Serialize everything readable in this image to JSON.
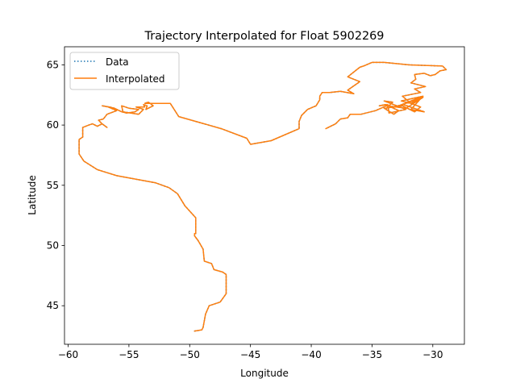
{
  "chart_data": {
    "type": "line",
    "title": "Trajectory Interpolated for Float 5902269",
    "xlabel": "Longitude",
    "ylabel": "Latitude",
    "xlim": [
      -60.3,
      -27.4
    ],
    "ylim": [
      41.8,
      66.5
    ],
    "xticks": [
      -60,
      -55,
      -50,
      -45,
      -40,
      -35,
      -30
    ],
    "yticks": [
      45,
      50,
      55,
      60,
      65
    ],
    "xtick_labels": [
      "−60",
      "−55",
      "−50",
      "−45",
      "−40",
      "−35",
      "−30"
    ],
    "ytick_labels": [
      "45",
      "50",
      "55",
      "60",
      "65"
    ],
    "grid": false,
    "legend_position": "upper left",
    "series": [
      {
        "name": "Data",
        "style": "dotted",
        "color": "#1f77b4",
        "x": [
          -49.6,
          -49.0,
          -48.9,
          -48.7,
          -48.4,
          -47.5,
          -47.0,
          -47.0,
          -47.0,
          -47.3,
          -48.0,
          -48.2,
          -48.8,
          -48.9,
          -49.3,
          -49.6,
          -49.6,
          -49.5,
          -49.5,
          -50.4,
          -51.0,
          -51.7,
          -52.8,
          -56.0,
          -57.6,
          -58.7,
          -59.1,
          -59.1,
          -58.8,
          -58.8,
          -58.3,
          -58.0,
          -57.6,
          -57.2,
          -56.8,
          -57.2,
          -57.5,
          -57.1,
          -56.8,
          -56.0,
          -56.7,
          -57.2,
          -56.6,
          -56.2,
          -55.6,
          -55.2,
          -54.5,
          -54.2,
          -55.0,
          -55.6,
          -55.5,
          -54.2,
          -53.8,
          -54.4,
          -53.7,
          -53.8,
          -53.5,
          -53.6,
          -53.0,
          -53.4,
          -53.7,
          -52.6,
          -51.6,
          -50.9,
          -47.4,
          -45.3,
          -45.0,
          -43.3,
          -41.0,
          -41.0,
          -40.8,
          -40.6,
          -40.3,
          -39.6,
          -39.3,
          -39.3,
          -39.1,
          -38.5,
          -37.6,
          -36.5,
          -37.0,
          -36.0,
          -37.0,
          -36.0,
          -35.7,
          -35.0,
          -34.0,
          -32.0,
          -29.2,
          -28.9,
          -29.4,
          -29.8,
          -30.2,
          -30.7,
          -31.5,
          -31.4,
          -31.8,
          -30.6,
          -31.5,
          -31.0,
          -32.5,
          -31.8,
          -30.9,
          -31.8,
          -30.7,
          -32.4,
          -33.8,
          -33.3,
          -34.0,
          -32.2,
          -33.6,
          -33.7,
          -34.4,
          -33.9,
          -32.8,
          -33.2,
          -34.0,
          -32.5,
          -31.5,
          -31.0,
          -31.8,
          -32.6,
          -30.8,
          -32.8,
          -30.8,
          -32.2,
          -33.8,
          -34.7,
          -35.9,
          -36.8,
          -37.0,
          -37.6,
          -38.0,
          -38.8
        ],
        "y": [
          42.9,
          43.0,
          43.2,
          44.3,
          45.0,
          45.3,
          46.0,
          46.6,
          47.6,
          47.8,
          48.0,
          48.5,
          48.7,
          49.7,
          50.4,
          50.8,
          51.0,
          51.0,
          52.3,
          53.3,
          54.3,
          54.8,
          55.2,
          55.8,
          56.3,
          57.0,
          57.6,
          58.8,
          59.0,
          59.8,
          60.0,
          60.1,
          59.9,
          60.1,
          59.8,
          60.1,
          60.4,
          60.5,
          60.9,
          61.2,
          61.5,
          61.6,
          61.5,
          61.4,
          61.1,
          61.0,
          61.1,
          61.3,
          61.4,
          61.6,
          61.1,
          60.9,
          61.3,
          61.5,
          61.5,
          61.7,
          61.6,
          61.3,
          61.6,
          61.9,
          61.8,
          61.8,
          61.8,
          60.7,
          59.7,
          58.9,
          58.4,
          58.7,
          59.7,
          60.3,
          60.8,
          61.0,
          61.3,
          61.6,
          62.1,
          62.4,
          62.7,
          62.7,
          62.8,
          62.6,
          62.9,
          63.6,
          64.0,
          64.8,
          64.9,
          65.2,
          65.2,
          65.0,
          64.9,
          64.6,
          64.5,
          64.2,
          64.1,
          64.3,
          64.2,
          63.8,
          63.5,
          63.2,
          63.0,
          62.7,
          62.4,
          61.8,
          62.3,
          61.3,
          61.1,
          61.7,
          61.4,
          61.9,
          62.0,
          61.3,
          61.0,
          61.7,
          61.6,
          61.7,
          61.2,
          60.9,
          61.4,
          61.6,
          61.1,
          61.5,
          61.8,
          62.0,
          62.4,
          61.6,
          62.3,
          61.4,
          61.6,
          61.2,
          60.9,
          60.9,
          60.6,
          60.5,
          60.1,
          59.7
        ]
      },
      {
        "name": "Interpolated",
        "style": "solid",
        "color": "#ff7f0e",
        "x": [
          -49.6,
          -49.0,
          -48.9,
          -48.7,
          -48.4,
          -47.5,
          -47.0,
          -47.0,
          -47.0,
          -47.3,
          -48.0,
          -48.2,
          -48.8,
          -48.9,
          -49.3,
          -49.6,
          -49.6,
          -49.5,
          -49.5,
          -50.4,
          -51.0,
          -51.7,
          -52.8,
          -56.0,
          -57.6,
          -58.7,
          -59.1,
          -59.1,
          -58.8,
          -58.8,
          -58.3,
          -58.0,
          -57.6,
          -57.2,
          -56.8,
          -57.2,
          -57.5,
          -57.1,
          -56.8,
          -56.0,
          -56.7,
          -57.2,
          -56.6,
          -56.2,
          -55.6,
          -55.2,
          -54.5,
          -54.2,
          -55.0,
          -55.6,
          -55.5,
          -54.2,
          -53.8,
          -54.4,
          -53.7,
          -53.8,
          -53.5,
          -53.6,
          -53.0,
          -53.4,
          -53.7,
          -52.6,
          -51.6,
          -50.9,
          -47.4,
          -45.3,
          -45.0,
          -43.3,
          -41.0,
          -41.0,
          -40.8,
          -40.6,
          -40.3,
          -39.6,
          -39.3,
          -39.3,
          -39.1,
          -38.5,
          -37.6,
          -36.5,
          -37.0,
          -36.0,
          -37.0,
          -36.0,
          -35.7,
          -35.0,
          -34.0,
          -32.0,
          -29.2,
          -28.9,
          -29.4,
          -29.8,
          -30.2,
          -30.7,
          -31.5,
          -31.4,
          -31.8,
          -30.6,
          -31.5,
          -31.0,
          -32.5,
          -31.8,
          -30.9,
          -31.8,
          -30.7,
          -32.4,
          -33.8,
          -33.3,
          -34.0,
          -32.2,
          -33.6,
          -33.7,
          -34.4,
          -33.9,
          -32.8,
          -33.2,
          -34.0,
          -32.5,
          -31.5,
          -31.0,
          -31.8,
          -32.6,
          -30.8,
          -32.8,
          -30.8,
          -32.2,
          -33.8,
          -34.7,
          -35.9,
          -36.8,
          -37.0,
          -37.6,
          -38.0,
          -38.8
        ],
        "y": [
          42.9,
          43.0,
          43.2,
          44.3,
          45.0,
          45.3,
          46.0,
          46.6,
          47.6,
          47.8,
          48.0,
          48.5,
          48.7,
          49.7,
          50.4,
          50.8,
          51.0,
          51.0,
          52.3,
          53.3,
          54.3,
          54.8,
          55.2,
          55.8,
          56.3,
          57.0,
          57.6,
          58.8,
          59.0,
          59.8,
          60.0,
          60.1,
          59.9,
          60.1,
          59.8,
          60.1,
          60.4,
          60.5,
          60.9,
          61.2,
          61.5,
          61.6,
          61.5,
          61.4,
          61.1,
          61.0,
          61.1,
          61.3,
          61.4,
          61.6,
          61.1,
          60.9,
          61.3,
          61.5,
          61.5,
          61.7,
          61.6,
          61.3,
          61.6,
          61.9,
          61.8,
          61.8,
          61.8,
          60.7,
          59.7,
          58.9,
          58.4,
          58.7,
          59.7,
          60.3,
          60.8,
          61.0,
          61.3,
          61.6,
          62.1,
          62.4,
          62.7,
          62.7,
          62.8,
          62.6,
          62.9,
          63.6,
          64.0,
          64.8,
          64.9,
          65.2,
          65.2,
          65.0,
          64.9,
          64.6,
          64.5,
          64.2,
          64.1,
          64.3,
          64.2,
          63.8,
          63.5,
          63.2,
          63.0,
          62.7,
          62.4,
          61.8,
          62.3,
          61.3,
          61.1,
          61.7,
          61.4,
          61.9,
          62.0,
          61.3,
          61.0,
          61.7,
          61.6,
          61.7,
          61.2,
          60.9,
          61.4,
          61.6,
          61.1,
          61.5,
          61.8,
          62.0,
          62.4,
          61.6,
          62.3,
          61.4,
          61.6,
          61.2,
          60.9,
          60.9,
          60.6,
          60.5,
          60.1,
          59.7
        ]
      }
    ]
  }
}
